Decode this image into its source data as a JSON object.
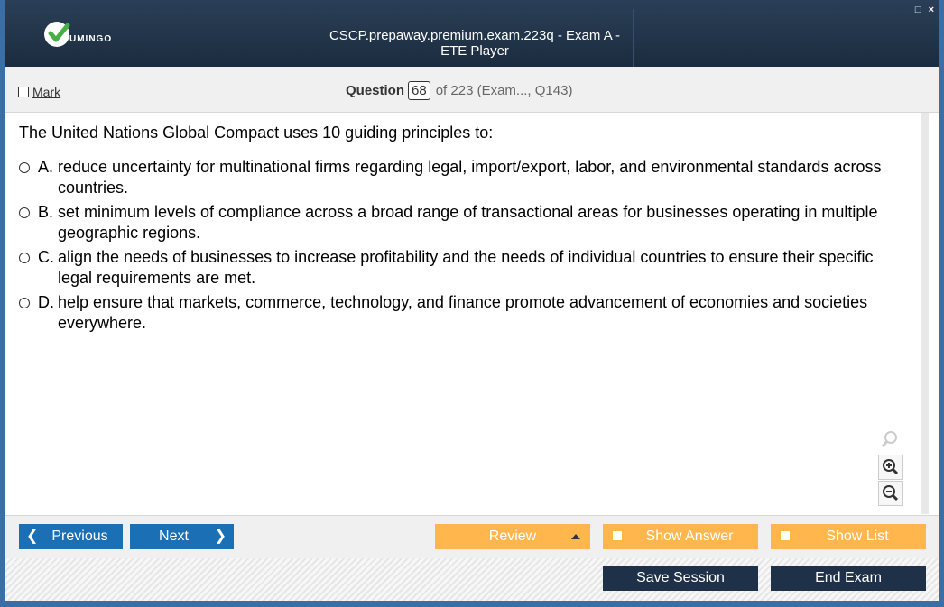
{
  "window": {
    "title": "CSCP.prepaway.premium.exam.223q - Exam A - ETE Player",
    "controls": [
      "_",
      "□",
      "×"
    ]
  },
  "logo": {
    "text": "UMINGO"
  },
  "question_bar": {
    "mark_label": "Mark",
    "question_label": "Question",
    "question_number": "68",
    "of_text": "of 223 (Exam..., Q143)"
  },
  "question": {
    "text": "The United Nations Global Compact uses 10 guiding principles to:",
    "options": [
      {
        "letter": "A.",
        "text": "reduce uncertainty for multinational firms regarding legal, import/export, labor, and environmental standards across countries."
      },
      {
        "letter": "B.",
        "text": "set minimum levels of compliance across a broad range of transactional areas for businesses operating in multiple geographic regions."
      },
      {
        "letter": "C.",
        "text": "align the needs of businesses to increase profitability and the needs of individual countries to ensure their specific legal requirements are met."
      },
      {
        "letter": "D.",
        "text": "help ensure that markets, commerce, technology, and finance promote advancement of economies and societies everywhere."
      }
    ]
  },
  "zoom_tools": [
    "search-icon",
    "zoom-in-icon",
    "zoom-out-icon"
  ],
  "navigation": {
    "previous": "Previous",
    "next": "Next",
    "review": "Review",
    "show_answer": "Show Answer",
    "show_list": "Show List"
  },
  "session": {
    "save": "Save Session",
    "end": "End Exam"
  },
  "colors": {
    "header": "#1c2c3f",
    "nav_blue": "#1a6fb5",
    "orange": "#ffb64d",
    "dark_button": "#1e3148"
  }
}
